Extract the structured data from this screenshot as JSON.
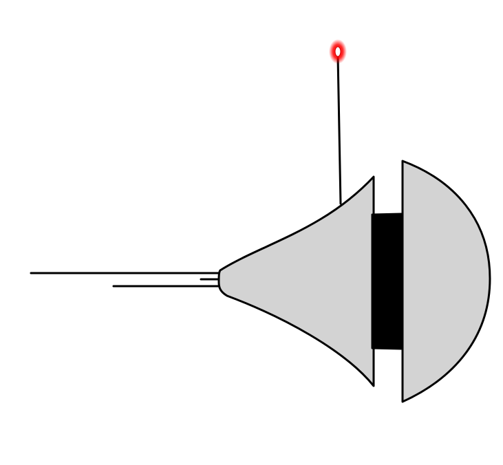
{
  "diagram": {
    "colors": {
      "background": "#ffffff",
      "outline": "#000000",
      "body_fill": "#d3d3d3",
      "band_fill": "#000000",
      "led_glow": "#ff0000",
      "led_core": "#ffffff"
    },
    "parts": [
      {
        "name": "long-lead",
        "type": "line"
      },
      {
        "name": "short-lead",
        "type": "line"
      },
      {
        "name": "flared-body",
        "type": "shape"
      },
      {
        "name": "center-band",
        "type": "shape"
      },
      {
        "name": "dome-cap",
        "type": "shape"
      },
      {
        "name": "antenna-wire",
        "type": "line"
      },
      {
        "name": "red-indicator-light",
        "type": "icon"
      }
    ]
  }
}
